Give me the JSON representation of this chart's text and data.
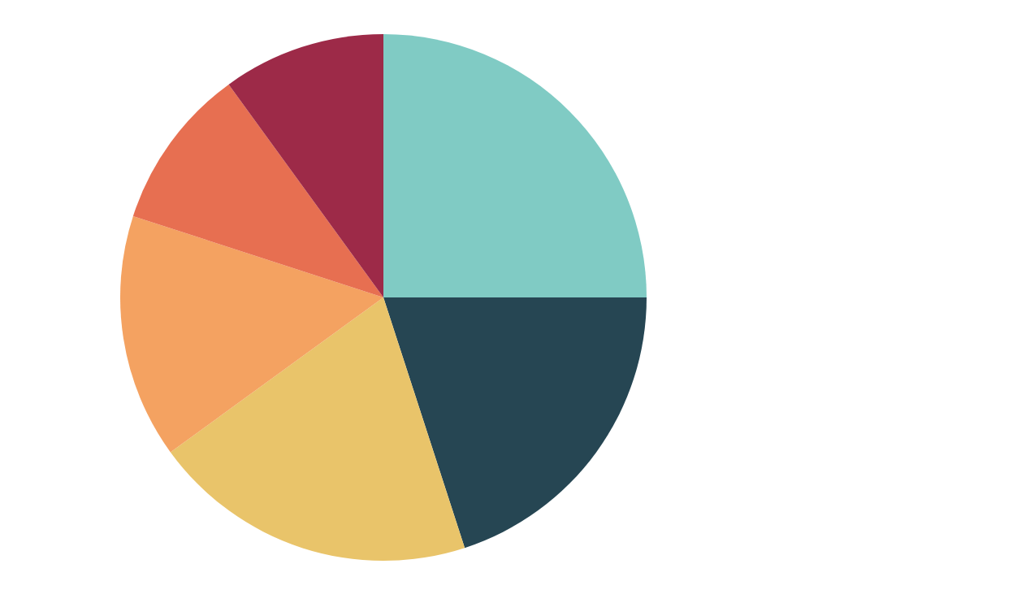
{
  "chart_data": {
    "type": "pie",
    "categories": [
      null,
      null,
      null,
      null,
      null,
      null
    ],
    "values": [
      25,
      20,
      20,
      15,
      10,
      10
    ],
    "colors": [
      "#80cbc4",
      "#264653",
      "#e9c46a",
      "#f4a261",
      "#e76f51",
      "#9d2a48"
    ]
  }
}
